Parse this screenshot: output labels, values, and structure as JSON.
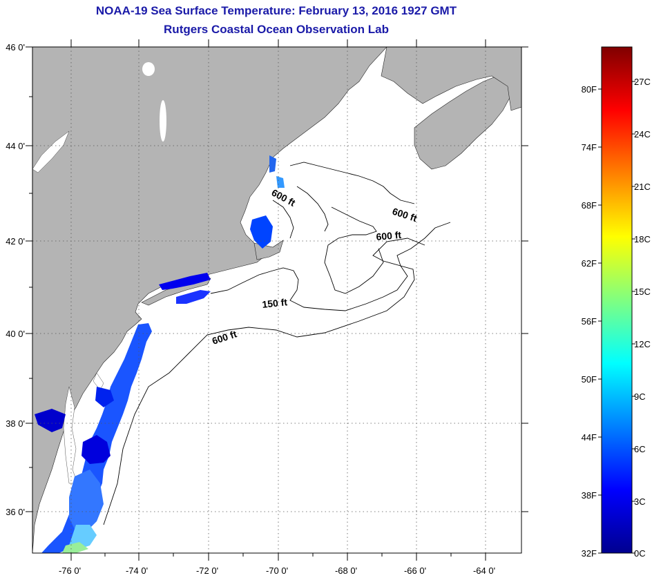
{
  "title": "NOAA-19 Sea Surface Temperature:  February 13, 2016 1927 GMT",
  "subtitle": "Rutgers Coastal Ocean Observation Lab",
  "map": {
    "lon_labels": [
      "-76 0'",
      "-74 0'",
      "-72 0'",
      "-70 0'",
      "-68 0'",
      "-66 0'",
      "-64 0'"
    ],
    "lat_labels": [
      "46 0'",
      "44 0'",
      "42 0'",
      "40 0'",
      "38 0'",
      "36 0'"
    ],
    "contour_labels": [
      "600 ft",
      "600 ft",
      "600 ft",
      "150 ft",
      "600 ft"
    ],
    "colors": {
      "land": "#b4b4b4",
      "ocean": "#ffffff",
      "grid": "#555555"
    }
  },
  "colorbar": {
    "fahrenheit_labels": [
      "80F",
      "74F",
      "68F",
      "62F",
      "56F",
      "50F",
      "44F",
      "38F",
      "32F"
    ],
    "celsius_labels": [
      "27C",
      "24C",
      "21C",
      "18C",
      "15C",
      "12C",
      "9C",
      "6C",
      "3C",
      "0C"
    ],
    "colors": [
      "#00008f",
      "#0000ff",
      "#0080ff",
      "#00ffff",
      "#80ff80",
      "#ffff00",
      "#ff8000",
      "#ff0000",
      "#800000"
    ]
  }
}
